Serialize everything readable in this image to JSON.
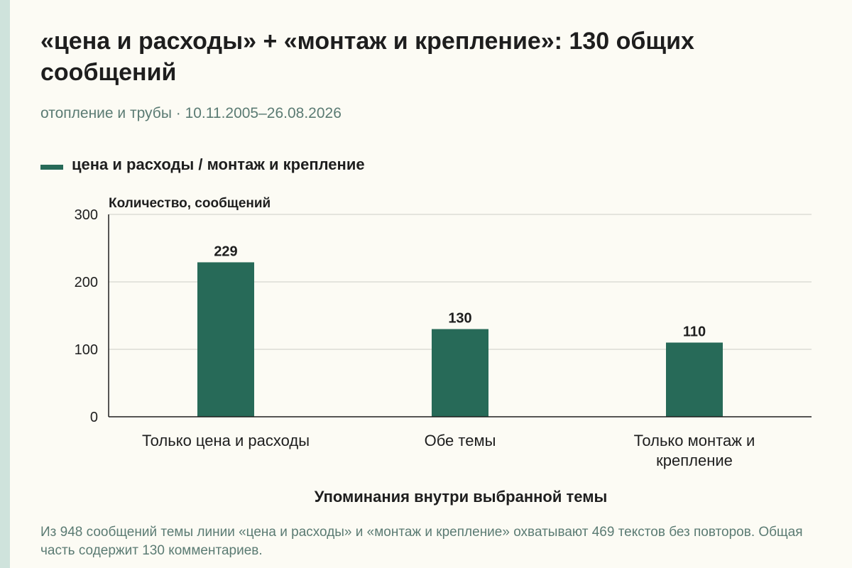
{
  "title": "«цена и расходы» + «монтаж и крепление»: 130 общих сообщений",
  "subtitle": "отопление и трубы · 10.11.2005–26.08.2026",
  "footnote": "Из 948 сообщений темы линии «цена и расходы» и «монтаж и крепление» охватывают 469 текстов без повторов. Общая часть содержит 130 комментариев.",
  "colors": {
    "bar": "#276a58",
    "grid": "#d6d6cf",
    "axis": "#1e1e1e"
  },
  "chart_data": {
    "type": "bar",
    "categories": [
      "Только цена и расходы",
      "Обе темы",
      "Только монтаж и крепление"
    ],
    "series": [
      {
        "name": "цена и расходы / монтаж и крепление",
        "values": [
          229,
          130,
          110
        ]
      }
    ],
    "ylabel": "Количество, сообщений",
    "xlabel": "Упоминания внутри выбранной темы",
    "ylim": [
      0,
      300
    ],
    "yticks": [
      0,
      100,
      200,
      300
    ],
    "grid": true,
    "legend": "top-left"
  }
}
